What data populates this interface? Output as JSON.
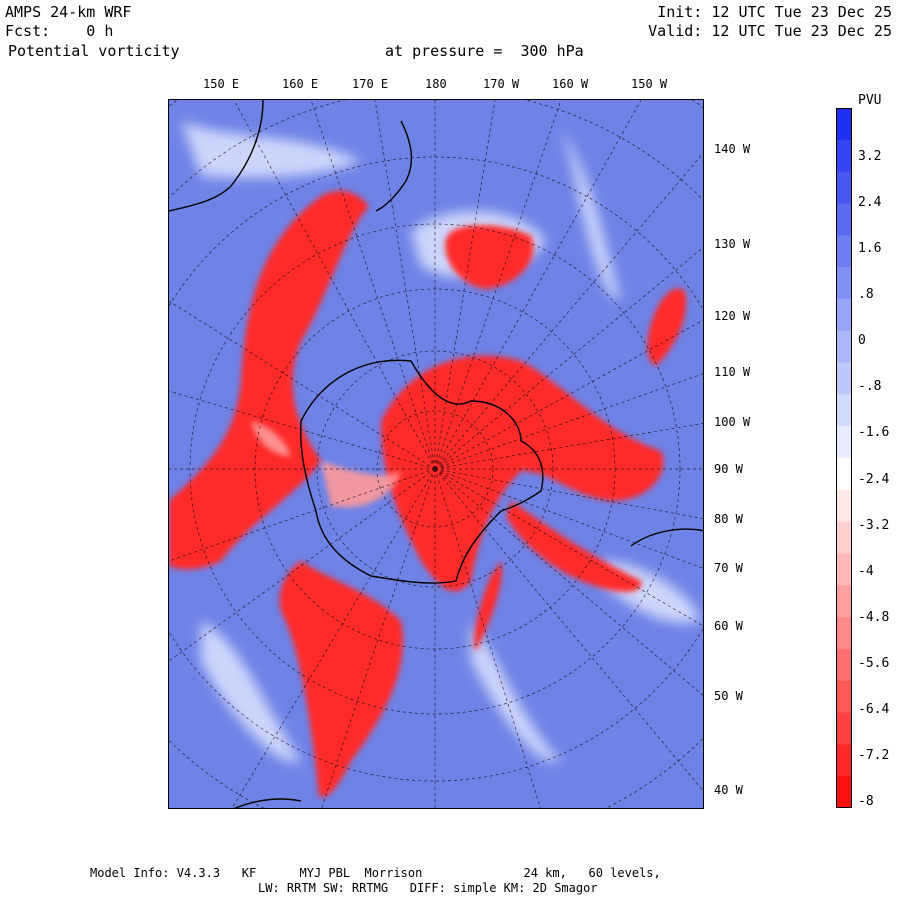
{
  "header": {
    "model": "AMPS 24-km WRF",
    "forecast": "Fcst:    0 h",
    "field": "Potential vorticity",
    "level": "at pressure =  300 hPa",
    "init": "Init: 12 UTC Tue 23 Dec 25",
    "valid": "Valid: 12 UTC Tue 23 Dec 25"
  },
  "map": {
    "top_longitudes": [
      "150 E",
      "160 E",
      "170 E",
      "180",
      "170 W",
      "160 W",
      "150 W"
    ],
    "right_longitudes": [
      "140 W",
      "130 W",
      "120 W",
      "110 W",
      "100 W",
      "90 W",
      "80 W",
      "70 W",
      "60 W",
      "50 W",
      "40 W"
    ],
    "colors": {
      "background": "#6f82e6",
      "high": "#ff1a1a",
      "pale": "#eef0ff",
      "coast": "#000000"
    }
  },
  "colorbar": {
    "unit": "PVU",
    "ticks": [
      "3.2",
      "2.4",
      "1.6",
      ".8",
      "0",
      "-.8",
      "-1.6",
      "-2.4",
      "-3.2",
      "-4",
      "-4.8",
      "-5.6",
      "-6.4",
      "-7.2",
      "-8"
    ],
    "colors": [
      "#1f2ff0",
      "#3444f0",
      "#4857f0",
      "#5c6af0",
      "#707ef2",
      "#8491f4",
      "#98a4f6",
      "#acb6f8",
      "#c0c8fa",
      "#d4dafc",
      "#e8ecfe",
      "#ffffff",
      "#ffe8e8",
      "#ffd0d0",
      "#ffb8b8",
      "#ffa0a0",
      "#ff8888",
      "#ff7070",
      "#ff5858",
      "#ff4040",
      "#ff2828",
      "#ff1010"
    ]
  },
  "footer": {
    "line1": "Model Info: V4.3.3   KF      MYJ PBL  Morrison              24 km,   60 levels,",
    "line2": "LW: RRTM SW: RRTMG   DIFF: simple KM: 2D Smagor"
  }
}
